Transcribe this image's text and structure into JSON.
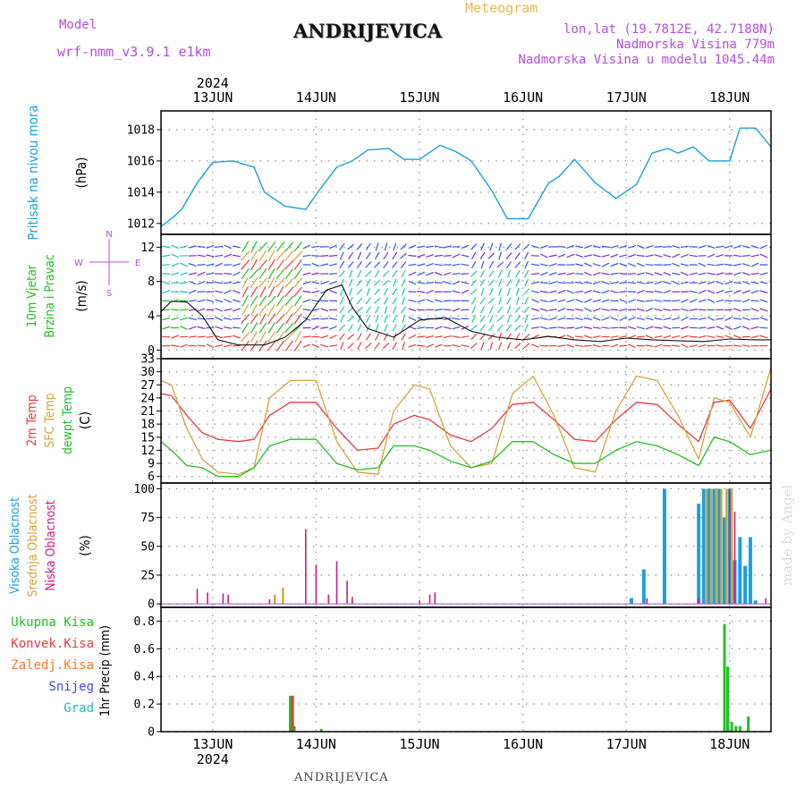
{
  "header": {
    "model_label": "Model",
    "model_name": "wrf-nmm_v3.9.1 e1km",
    "location": "ANDRIJEVICA",
    "meteogram": "Meteogram",
    "lonlat": "lon,lat (19.7812E, 42.7188N)",
    "altitude": "Nadmorska Visina 779m",
    "model_altitude": "Nadmorska Visina u modelu 1045.44m",
    "footer": "ANDRIJEVICA",
    "watermark": "made by Angel"
  },
  "colors": {
    "pressure": "#1aa0e0",
    "temp2m": "#e83c3c",
    "sfc": "#d4a43a",
    "dewpt": "#22c022",
    "high_cloud": "#1aa0e0",
    "mid_cloud": "#d4a43a",
    "low_cloud": "#c81e82",
    "total_precip": "#22c022",
    "conv_precip": "#e83c3c",
    "frozen_precip": "#ff7722",
    "snow": "#4444ee",
    "hail": "#22bbbb",
    "model_label": "#b44ce0",
    "meteogram": "#e8b84a"
  },
  "chart_data": [
    {
      "id": "pressure",
      "type": "line",
      "title": "",
      "ylabel_lines": [
        "Pritisak na nivou mora",
        "(hPa)"
      ],
      "ylim": [
        1011.3,
        1019.2
      ],
      "yticks": [
        1012,
        1014,
        1016,
        1018
      ],
      "x": [
        0,
        0.1,
        0.2,
        0.35,
        0.5,
        0.7,
        0.9,
        1.0,
        1.2,
        1.4,
        1.55,
        1.7,
        1.85,
        2.0,
        2.2,
        2.35,
        2.5,
        2.7,
        2.85,
        3.0,
        3.2,
        3.35,
        3.55,
        3.75,
        3.85,
        4.0,
        4.2,
        4.4,
        4.6,
        4.75,
        4.9,
        5.0,
        5.15,
        5.3,
        5.5,
        5.6,
        5.75,
        5.9
      ],
      "values": [
        1011.8,
        1012.3,
        1012.9,
        1014.6,
        1015.9,
        1016.0,
        1015.6,
        1014.0,
        1013.1,
        1012.9,
        1014.3,
        1015.6,
        1016.0,
        1016.7,
        1016.8,
        1016.1,
        1016.1,
        1017.0,
        1016.6,
        1016.0,
        1014.1,
        1012.3,
        1012.3,
        1014.6,
        1015.0,
        1016.1,
        1014.6,
        1013.6,
        1014.5,
        1016.5,
        1016.8,
        1016.5,
        1016.9,
        1016.0,
        1016.0,
        1018.1,
        1018.1,
        1016.9
      ],
      "series_name": ""
    },
    {
      "id": "wind",
      "type": "line",
      "title": "",
      "ylabel_lines": [
        "10m Vjetar",
        "Brzina i Pravac",
        "(m/s)"
      ],
      "compass": {
        "north": "N",
        "west": "W",
        "east": "E",
        "south": "S"
      },
      "ylim": [
        -1,
        13.5
      ],
      "yticks": [
        0,
        4,
        8,
        12
      ],
      "x": [
        0,
        0.1,
        0.25,
        0.4,
        0.55,
        0.75,
        1.0,
        1.2,
        1.4,
        1.6,
        1.75,
        1.85,
        2.0,
        2.25,
        2.5,
        2.75,
        3.0,
        3.25,
        3.5,
        3.75,
        4.0,
        4.25,
        4.5,
        4.75,
        5.0,
        5.25,
        5.5,
        5.75,
        5.9
      ],
      "values": [
        4.5,
        5.7,
        5.6,
        4.0,
        1.2,
        0.6,
        0.6,
        1.5,
        3.5,
        7.0,
        7.6,
        5.0,
        2.5,
        1.5,
        3.5,
        3.8,
        2.2,
        1.5,
        1.2,
        1.6,
        1.2,
        1.0,
        1.4,
        1.2,
        1.1,
        1.0,
        1.3,
        1.2,
        1.2
      ],
      "series_name": ""
    },
    {
      "id": "temperature",
      "type": "line",
      "title": "",
      "ylabel_lines": [
        "2m Temp",
        "SFC Temp",
        "dewpt Temp",
        "(C)"
      ],
      "ylim": [
        4.5,
        33
      ],
      "yticks": [
        6,
        9,
        12,
        15,
        18,
        21,
        24,
        27,
        30,
        33
      ],
      "x": [
        0,
        0.1,
        0.25,
        0.4,
        0.55,
        0.75,
        0.9,
        1.05,
        1.25,
        1.5,
        1.7,
        1.9,
        2.1,
        2.25,
        2.45,
        2.6,
        2.8,
        3.0,
        3.2,
        3.4,
        3.6,
        3.8,
        4.0,
        4.2,
        4.4,
        4.6,
        4.8,
        5.0,
        5.2,
        5.35,
        5.5,
        5.7,
        5.9
      ],
      "series": [
        {
          "name": "2m Temp",
          "values": [
            25,
            24.5,
            20,
            16,
            14.5,
            14,
            14.5,
            20,
            23,
            23,
            17,
            12,
            12.5,
            18,
            20,
            19,
            15.5,
            14,
            17,
            22.5,
            23,
            19,
            14.5,
            14,
            19,
            23,
            22.5,
            18,
            14,
            23,
            23.5,
            17,
            26
          ]
        },
        {
          "name": "SFC Temp",
          "values": [
            28,
            27,
            17,
            10,
            7,
            6.5,
            8,
            24,
            28,
            28,
            14,
            7,
            6.5,
            21,
            27,
            26,
            13,
            8,
            9,
            25,
            29,
            20,
            8,
            7,
            21,
            29,
            28,
            20,
            10,
            24,
            23,
            15,
            31
          ]
        },
        {
          "name": "dewpt Temp",
          "values": [
            14,
            12,
            8.5,
            8,
            6,
            6,
            8,
            13,
            14.5,
            14.5,
            9,
            7.5,
            8,
            13,
            13,
            12,
            9.5,
            8,
            9.5,
            14,
            14,
            11,
            9,
            9,
            12,
            14,
            13,
            11,
            8.5,
            15,
            14,
            11,
            12
          ]
        }
      ]
    },
    {
      "id": "cloud",
      "type": "bar",
      "title": "",
      "ylabel_lines": [
        "Visoka Oblacnost",
        "Srednja Oblacnost",
        "Niska Oblacnost",
        "(%)"
      ],
      "ylim": [
        -3,
        105
      ],
      "yticks": [
        0,
        25,
        50,
        75,
        100
      ],
      "series": [
        {
          "name": "Visoka Oblacnost",
          "x": [
            4.55,
            4.67,
            4.87,
            5.2,
            5.25,
            5.3,
            5.35,
            5.4,
            5.45,
            5.5,
            5.55,
            5.6,
            5.65,
            5.7,
            5.75
          ],
          "values": [
            5,
            30,
            100,
            87,
            100,
            100,
            100,
            100,
            75,
            100,
            38,
            58,
            33,
            58,
            3
          ]
        },
        {
          "name": "Srednja Oblacnost",
          "x": [
            1.1,
            1.18,
            5.27,
            5.32,
            5.37,
            5.42,
            5.47,
            5.52
          ],
          "values": [
            8,
            14,
            100,
            100,
            100,
            100,
            100,
            100
          ]
        },
        {
          "name": "Niska Oblacnost",
          "x": [
            0.35,
            0.45,
            0.6,
            0.65,
            1.05,
            1.4,
            1.5,
            1.62,
            1.7,
            1.8,
            1.85,
            2.5,
            2.6,
            2.65,
            4.7,
            5.2,
            5.5,
            5.55,
            5.85
          ],
          "values": [
            13,
            10,
            9,
            8,
            4,
            65,
            34,
            8,
            37,
            20,
            6,
            3,
            8,
            10,
            5,
            5,
            100,
            80,
            5
          ]
        }
      ]
    },
    {
      "id": "precip",
      "type": "bar",
      "title": "",
      "ylabel_lines": [
        "1hr Precip (mm)"
      ],
      "legend": [
        "Ukupna Kisa",
        "Konvek.Kisa",
        "Zaledj.Kisa",
        "Snijeg",
        "Grad"
      ],
      "ylim": [
        0,
        0.9
      ],
      "yticks": [
        0,
        0.2,
        0.4,
        0.6,
        0.8
      ],
      "series": [
        {
          "name": "Ukupna Kisa",
          "x": [
            1.25,
            1.29,
            1.55,
            5.45,
            5.48,
            5.52,
            5.56,
            5.6,
            5.68
          ],
          "values": [
            0.26,
            0.04,
            0.02,
            0.78,
            0.47,
            0.07,
            0.04,
            0.04,
            0.11
          ]
        },
        {
          "name": "Konvek.Kisa",
          "x": [
            1.26
          ],
          "values": [
            0.26
          ]
        }
      ]
    }
  ],
  "x_axis": {
    "range": [
      0,
      5.9
    ],
    "days": [
      {
        "x": 0.5,
        "label": "13JUN"
      },
      {
        "x": 1.5,
        "label": "14JUN"
      },
      {
        "x": 2.5,
        "label": "15JUN"
      },
      {
        "x": 3.5,
        "label": "16JUN"
      },
      {
        "x": 4.5,
        "label": "17JUN"
      },
      {
        "x": 5.5,
        "label": "18JUN"
      }
    ],
    "year": "2024"
  }
}
